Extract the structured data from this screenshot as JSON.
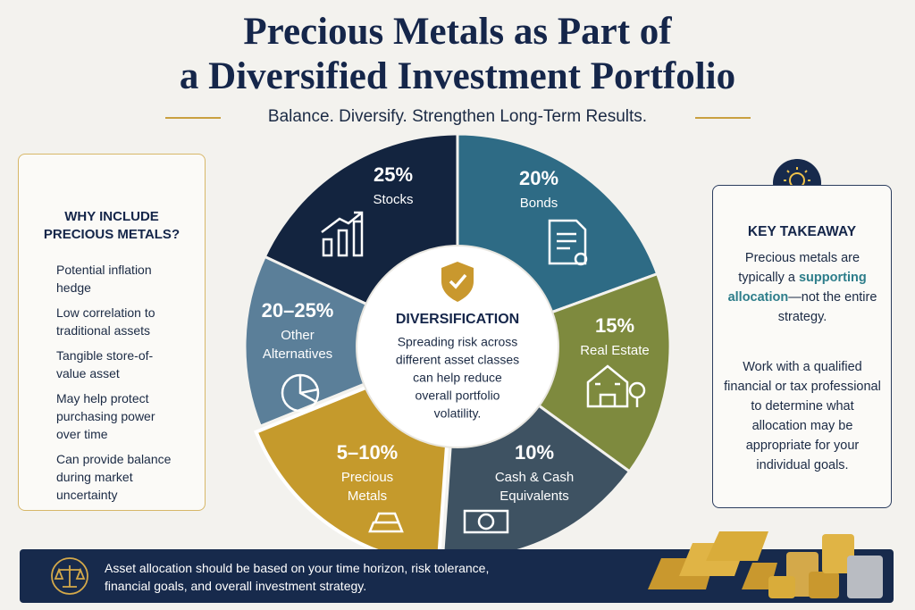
{
  "header": {
    "title_line1": "Precious Metals as Part of",
    "title_line2": "a Diversified Investment Portfolio",
    "subtitle": "Balance. Diversify. Strengthen Long-Term Results."
  },
  "segments": [
    {
      "percent": "25%",
      "label": [
        "Stocks"
      ]
    },
    {
      "percent": "20%",
      "label": [
        "Bonds"
      ]
    },
    {
      "percent": "15%",
      "label": [
        "Real Estate"
      ]
    },
    {
      "percent": "10%",
      "label": [
        "Cash & Cash",
        "Equivalents"
      ]
    },
    {
      "percent": "5–10%",
      "label": [
        "Precious",
        "Metals"
      ]
    },
    {
      "percent": "20–25%",
      "label": [
        "Other",
        "Alternatives"
      ]
    }
  ],
  "center": {
    "heading": "DIVERSIFICATION",
    "lines": [
      "Spreading risk across",
      "different asset classes",
      "can help reduce",
      "overall portfolio",
      "volatility."
    ]
  },
  "left_panel": {
    "heading": [
      "WHY INCLUDE",
      "PRECIOUS METALS?"
    ],
    "items": [
      [
        "Potential inflation",
        "hedge"
      ],
      [
        "Low correlation to",
        "traditional assets"
      ],
      [
        "Tangible store-of-",
        "value asset"
      ],
      [
        "May help protect",
        "purchasing power",
        "over time"
      ],
      [
        "Can provide balance",
        "during market",
        "uncertainty"
      ]
    ]
  },
  "right_panel": {
    "heading": "KEY TAKEAWAY",
    "text_before": "Precious metals are typically a",
    "highlight": "supporting allocation",
    "text_after": "—not the entire strategy.",
    "text2": "Work with a qualified financial or tax professional to determine what allocation may be appropriate for your individual goals."
  },
  "footer": {
    "text": "Asset allocation should be based on your time horizon, risk tolerance, financial goals, and overall investment strategy."
  }
}
